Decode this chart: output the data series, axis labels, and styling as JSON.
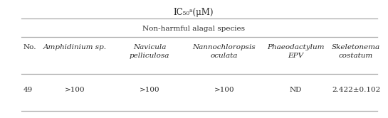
{
  "title": "IC₅₀ᵃ(μM)",
  "subheader": "Non-harmful alagal species",
  "col_no_label": "No.",
  "col_headers": [
    "Amphidinium sp.",
    "Navicula\npelliculosa",
    "Nannochloropsis\noculata",
    "Phaeodactylum\nEPV",
    "Skeletonema\ncostatum"
  ],
  "row_no": "49",
  "row_values": [
    ">100",
    ">100",
    ">100",
    "ND",
    "2.422±0.102"
  ],
  "bg_color": "#ffffff",
  "text_color": "#2a2a2a",
  "line_color": "#aaaaaa",
  "font_size": 7.5
}
